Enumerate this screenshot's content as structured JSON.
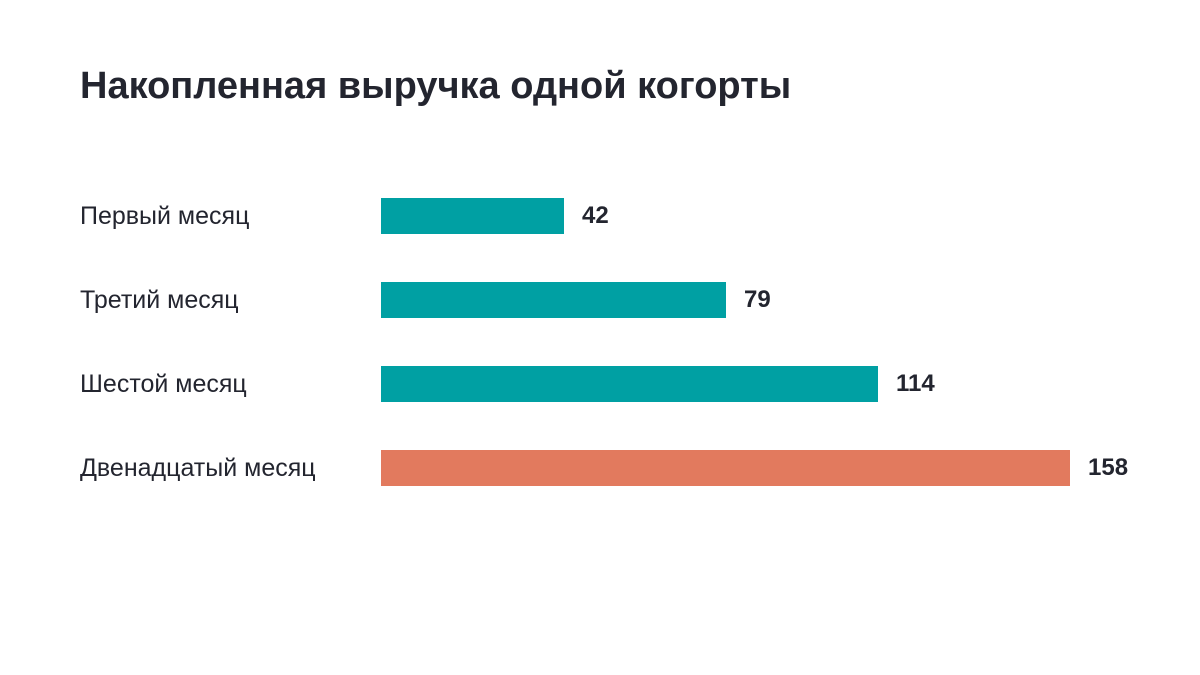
{
  "chart_data": {
    "type": "bar",
    "orientation": "horizontal",
    "title": "Накопленная выручка одной когорты",
    "categories": [
      "Первый месяц",
      "Третий месяц",
      "Шестой месяц",
      "Двенадцатый месяц"
    ],
    "values": [
      42,
      79,
      114,
      158
    ],
    "xlim": [
      0,
      158
    ],
    "grid": false,
    "legend": "none",
    "bar_colors": [
      "#00a0a3",
      "#00a0a3",
      "#00a0a3",
      "#e27a5e"
    ]
  }
}
